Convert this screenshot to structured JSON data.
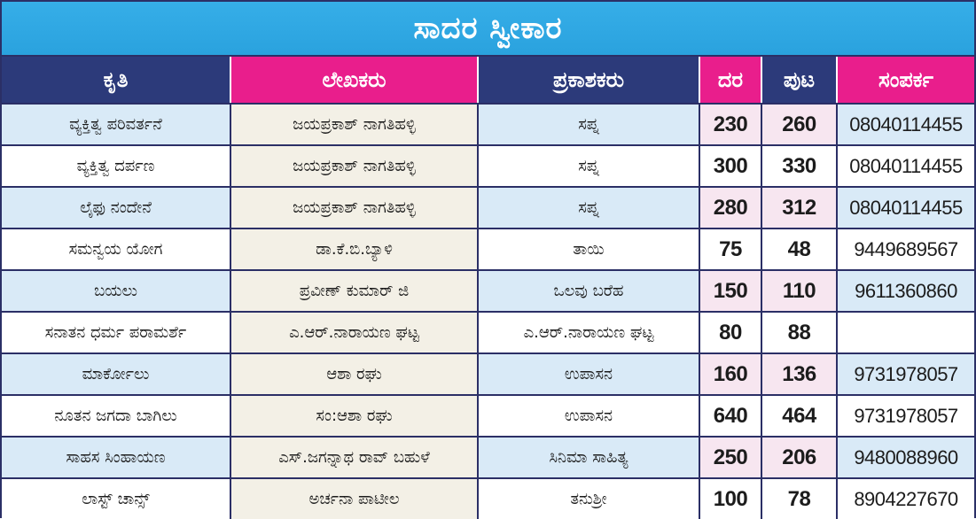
{
  "title": "ಸಾದರ ಸ್ವೀಕಾರ",
  "colors": {
    "title_bg": "#2aa2de",
    "header_navy": "#2c3a7a",
    "header_pink": "#e91e8c",
    "row_blue": "#d9eaf7",
    "row_cream": "#f3f0e6",
    "row_pink": "#f7e6f0"
  },
  "headers": {
    "title": "ಕೃತಿ",
    "author": "ಲೇಖಕರು",
    "publisher": "ಪ್ರಕಾಶಕರು",
    "rate": "ದರ",
    "pages": "ಪುಟ",
    "contact": "ಸಂಪರ್ಕ"
  },
  "rows": [
    {
      "title": "ವ್ಯಕ್ತಿತ್ವ ಪರಿವರ್ತನೆ",
      "author": "ಜಯಪ್ರಕಾಶ್ ನಾಗತಿಹಳ್ಳಿ",
      "publisher": "ಸಪ್ನ",
      "rate": "230",
      "pages": "260",
      "contact": "08040114455"
    },
    {
      "title": "ವ್ಯಕ್ತಿತ್ವ ದರ್ಪಣ",
      "author": "ಜಯಪ್ರಕಾಶ್ ನಾಗತಿಹಳ್ಳಿ",
      "publisher": "ಸಪ್ನ",
      "rate": "300",
      "pages": "330",
      "contact": "08040114455"
    },
    {
      "title": "ಲೈಫು ನಂದೇನೆ",
      "author": "ಜಯಪ್ರಕಾಶ್ ನಾಗತಿಹಳ್ಳಿ",
      "publisher": "ಸಪ್ನ",
      "rate": "280",
      "pages": "312",
      "contact": "08040114455"
    },
    {
      "title": "ಸಮನ್ವಯ ಯೋಗ",
      "author": "ಡಾ.ಕೆ.ಬಿ.ಬ್ಯಾಳಿ",
      "publisher": "ತಾಯಿ",
      "rate": "75",
      "pages": "48",
      "contact": "9449689567"
    },
    {
      "title": "ಬಯಲು",
      "author": "ಪ್ರವೀಣ್ ಕುಮಾರ್ ಜಿ",
      "publisher": "ಒಲವು ಬರೆಹ",
      "rate": "150",
      "pages": "110",
      "contact": "9611360860"
    },
    {
      "title": "ಸನಾತನ ಧರ್ಮ ಪರಾಮರ್ಶೆ",
      "author": "ಎ.ಆರ್.ನಾರಾಯಣ ಘಟ್ಟ",
      "publisher": "ಎ.ಆರ್.ನಾರಾಯಣ ಘಟ್ಟ",
      "rate": "80",
      "pages": "88",
      "contact": ""
    },
    {
      "title": "ಮಾರ್ಕೋಲು",
      "author": "ಆಶಾ ರಘು",
      "publisher": "ಉಪಾಸನ",
      "rate": "160",
      "pages": "136",
      "contact": "9731978057"
    },
    {
      "title": "ನೂತನ ಜಗದಾ ಬಾಗಿಲು",
      "author": "ಸಂ:ಆಶಾ ರಘು",
      "publisher": "ಉಪಾಸನ",
      "rate": "640",
      "pages": "464",
      "contact": "9731978057"
    },
    {
      "title": "ಸಾಹಸ ಸಿಂಹಾಯಣ",
      "author": "ಎಸ್.ಜಗನ್ನಾಥ ರಾವ್ ಬಹುಳೆ",
      "publisher": "ಸಿನಿಮಾ ಸಾಹಿತ್ಯ",
      "rate": "250",
      "pages": "206",
      "contact": "9480088960"
    },
    {
      "title": "ಲಾಸ್ಟ್ ಚಾನ್ಸ್",
      "author": "ಅರ್ಚನಾ ಪಾಟೀಲ",
      "publisher": "ತನುಶ್ರೀ",
      "rate": "100",
      "pages": "78",
      "contact": "8904227670"
    }
  ]
}
